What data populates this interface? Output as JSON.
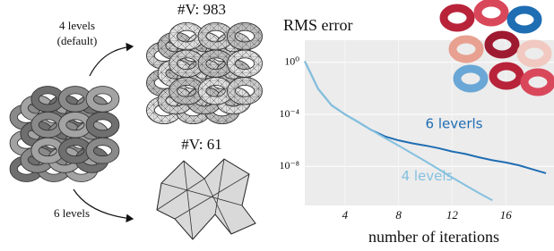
{
  "figure": {
    "labels": {
      "top_arrow": [
        "4 levels",
        "(default)"
      ],
      "bottom_arrow": "6 levels",
      "fine_count": "#V: 983",
      "coarse_count": "#V: 61"
    }
  },
  "chart_data": {
    "type": "line",
    "title": "RMS error",
    "x_label": "number of iterations",
    "x": [
      1,
      2,
      3,
      4,
      5,
      6,
      7,
      8,
      9,
      10,
      11,
      12,
      13,
      14,
      15,
      16,
      17,
      18,
      19
    ],
    "series": [
      {
        "name": "6 leverls",
        "color": "#1f6db3",
        "values": [
          1.2,
          0.009,
          0.0005,
          0.0001,
          2.5e-05,
          6e-06,
          2e-06,
          1e-06,
          6e-07,
          4e-07,
          2.5e-07,
          1.4e-07,
          9e-08,
          5e-08,
          3e-08,
          2e-08,
          1.2e-08,
          6e-09,
          3e-09
        ]
      },
      {
        "name": "4 levels",
        "color": "#84c1df",
        "values": [
          1.2,
          0.009,
          0.0005,
          0.0001,
          2.5e-05,
          6e-06,
          1.5e-06,
          4e-07,
          1e-07,
          2.5e-08,
          6e-09,
          1.4e-09,
          3.5e-10,
          9e-11,
          2.5e-11,
          null,
          null,
          null,
          null
        ]
      }
    ],
    "xlim": [
      1,
      19.6
    ],
    "xticks": [
      4,
      8,
      12,
      16
    ],
    "ylim": [
      1e-11,
      50
    ],
    "log_y": true,
    "yticks": [
      {
        "value": 1,
        "label": "10⁰"
      },
      {
        "value": 0.0001,
        "label": "10⁻⁴"
      },
      {
        "value": 1e-08,
        "label": "10⁻⁸"
      }
    ],
    "grid": true
  }
}
